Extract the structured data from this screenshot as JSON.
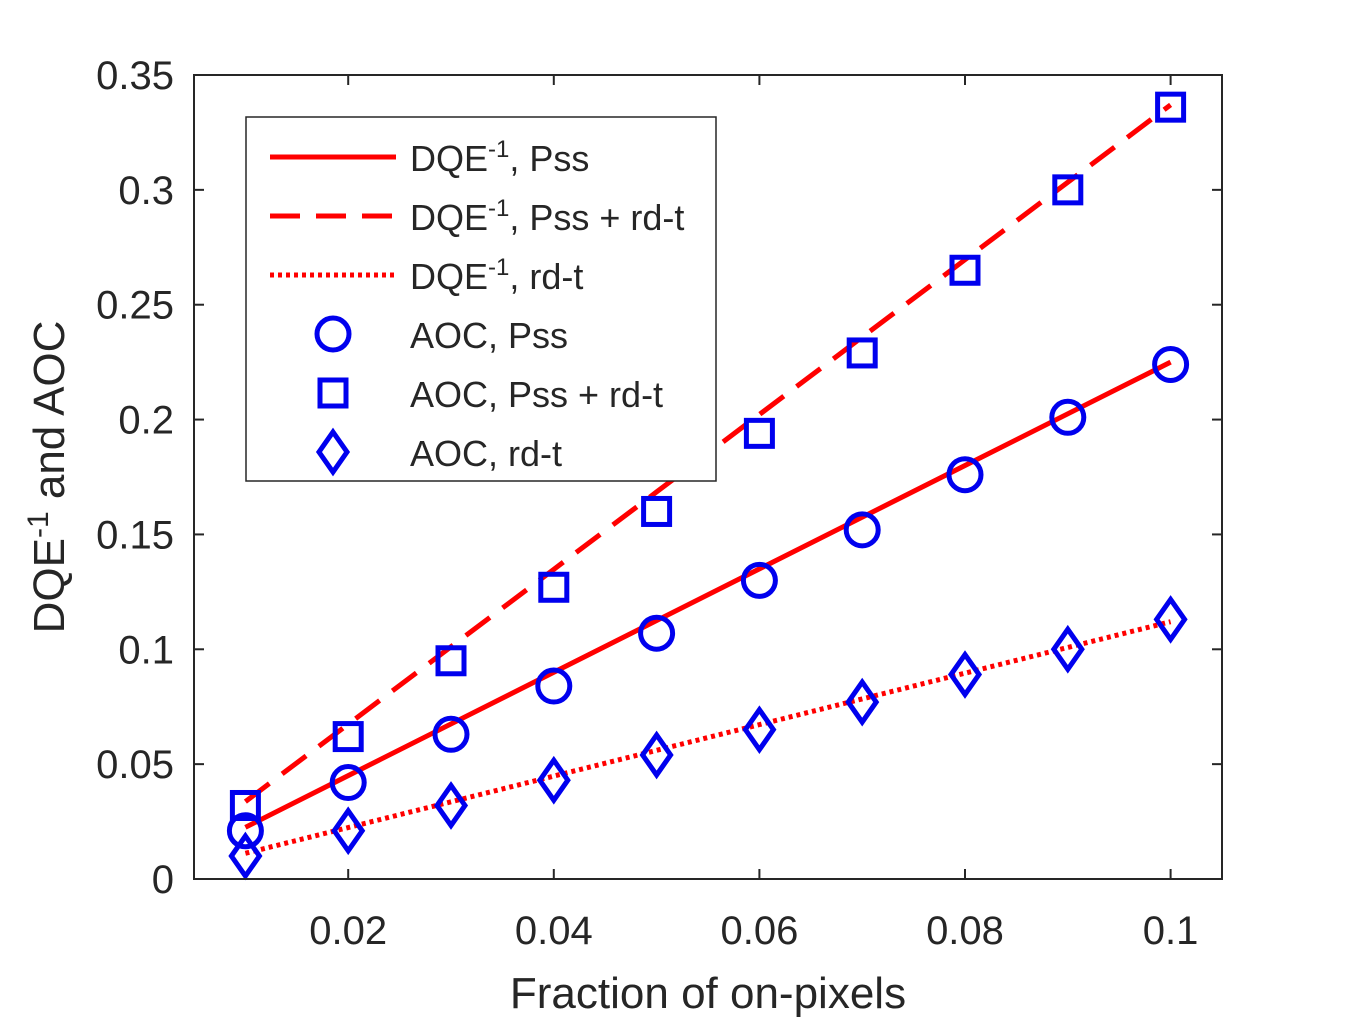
{
  "chart_data": {
    "type": "line",
    "title": "",
    "xlabel": "Fraction of on-pixels",
    "ylabel_main": "DQE",
    "ylabel_sup": "-1",
    "ylabel_rest": " and AOC",
    "xlim": [
      0.005,
      0.105
    ],
    "ylim": [
      0,
      0.35
    ],
    "xticks": [
      0.02,
      0.04,
      0.06,
      0.08,
      0.1
    ],
    "xtick_labels": [
      "0.02",
      "0.04",
      "0.06",
      "0.08",
      "0.1"
    ],
    "yticks": [
      0,
      0.05,
      0.1,
      0.15,
      0.2,
      0.25,
      0.3,
      0.35
    ],
    "ytick_labels": [
      "0",
      "0.05",
      "0.1",
      "0.15",
      "0.2",
      "0.25",
      "0.3",
      "0.35"
    ],
    "grid": false,
    "legend_position": "top-left",
    "x": [
      0.01,
      0.02,
      0.03,
      0.04,
      0.05,
      0.06,
      0.07,
      0.08,
      0.09,
      0.1
    ],
    "line_color": "#ff0000",
    "marker_color": "#0000ee",
    "series": [
      {
        "name": "DQE-1, Pss",
        "kind": "line",
        "style": "solid",
        "legend_main": "DQE",
        "legend_sup": "-1",
        "legend_rest": ", Pss",
        "values": [
          0.0225,
          0.045,
          0.0675,
          0.09,
          0.1125,
          0.135,
          0.1575,
          0.18,
          0.2025,
          0.225
        ]
      },
      {
        "name": "DQE-1, Pss + rd-t",
        "kind": "line",
        "style": "dashed",
        "legend_main": "DQE",
        "legend_sup": "-1",
        "legend_rest": ", Pss + rd-t",
        "values": [
          0.0337,
          0.0674,
          0.1011,
          0.1348,
          0.1685,
          0.2022,
          0.2359,
          0.2696,
          0.3033,
          0.337
        ]
      },
      {
        "name": "DQE-1, rd-t",
        "kind": "line",
        "style": "dotted",
        "legend_main": "DQE",
        "legend_sup": "-1",
        "legend_rest": ", rd-t",
        "values": [
          0.0112,
          0.0224,
          0.0336,
          0.0448,
          0.056,
          0.0672,
          0.0784,
          0.0896,
          0.1008,
          0.112
        ]
      },
      {
        "name": "AOC, Pss",
        "kind": "marker",
        "marker": "circle",
        "legend_main": "AOC, Pss",
        "legend_sup": "",
        "legend_rest": "",
        "values": [
          0.021,
          0.042,
          0.063,
          0.084,
          0.107,
          0.13,
          0.152,
          0.176,
          0.201,
          0.224
        ]
      },
      {
        "name": "AOC, Pss + rd-t",
        "kind": "marker",
        "marker": "square",
        "legend_main": "AOC, Pss + rd-t",
        "legend_sup": "",
        "legend_rest": "",
        "values": [
          0.032,
          0.062,
          0.095,
          0.127,
          0.16,
          0.194,
          0.229,
          0.265,
          0.3,
          0.336
        ]
      },
      {
        "name": "AOC, rd-t",
        "kind": "marker",
        "marker": "diamond",
        "legend_main": "AOC, rd-t",
        "legend_sup": "",
        "legend_rest": "",
        "values": [
          0.01,
          0.021,
          0.032,
          0.043,
          0.054,
          0.065,
          0.077,
          0.089,
          0.1,
          0.113
        ]
      }
    ]
  }
}
